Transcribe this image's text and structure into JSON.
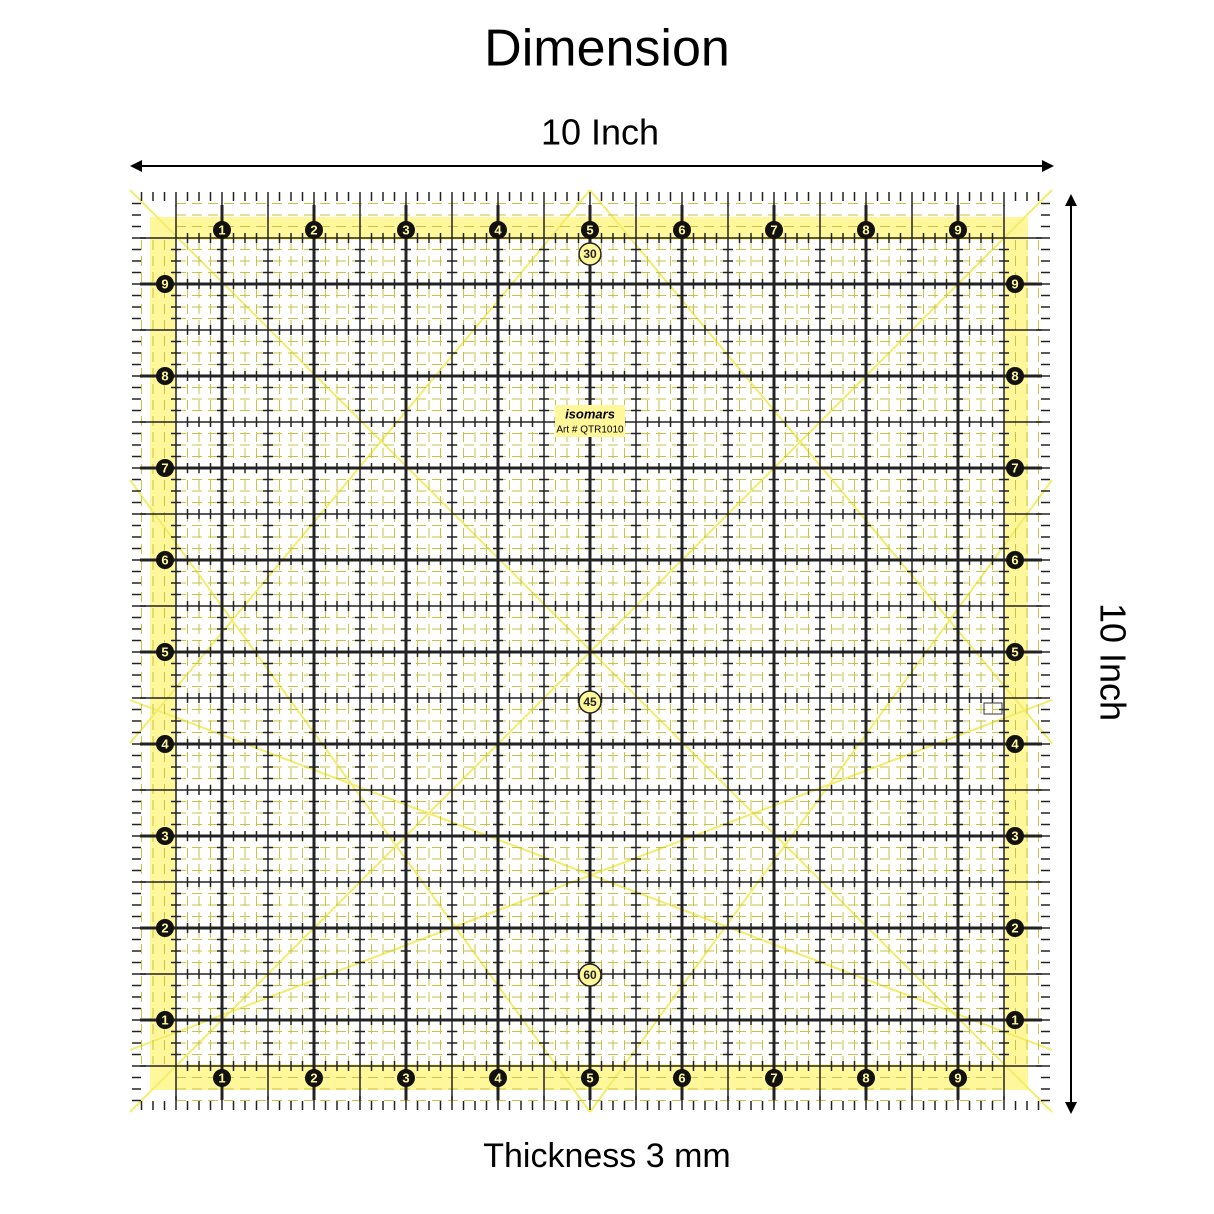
{
  "title": "Dimension",
  "width_label": "10 Inch",
  "height_label": "10 Inch",
  "thickness_label": "Thickness 3 mm",
  "ruler": {
    "brand": "isomars",
    "model": "Art # QTR1010",
    "inch_numbers": [
      "1",
      "2",
      "3",
      "4",
      "5",
      "6",
      "7",
      "8",
      "9"
    ],
    "angles": [
      "30",
      "45",
      "60"
    ]
  }
}
